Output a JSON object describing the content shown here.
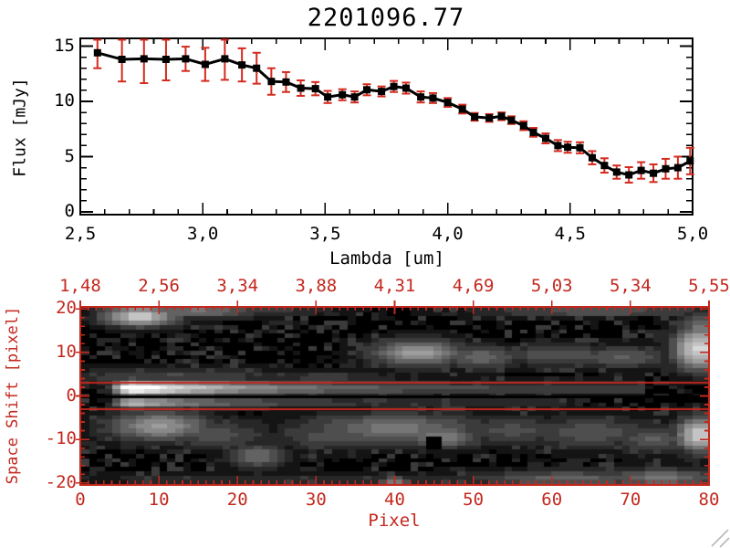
{
  "window": {
    "background": "#ffffff",
    "resize_grip_color": "#b8b8b8"
  },
  "chart_data": [
    {
      "type": "line",
      "title": "2201096.77",
      "xlabel": "Lambda [um]",
      "ylabel": "Flux [mJy]",
      "xlim": [
        2.5,
        5.0
      ],
      "ylim": [
        0,
        15.8
      ],
      "xticks": [
        2.5,
        3.0,
        3.5,
        4.0,
        4.5,
        5.0
      ],
      "xtick_labels": [
        "2,5",
        "3,0",
        "3,5",
        "4,0",
        "4,5",
        "5,0"
      ],
      "yticks": [
        0,
        5,
        10,
        15
      ],
      "ytick_labels": [
        "0",
        "5",
        "10",
        "15"
      ],
      "x_minor_step": 0.1,
      "y_minor_step": 1,
      "grid": false,
      "marker": "square",
      "line_color": "#000000",
      "marker_color": "#000000",
      "error_color": "#d42a1e",
      "x": [
        2.57,
        2.67,
        2.76,
        2.85,
        2.93,
        3.01,
        3.09,
        3.16,
        3.22,
        3.28,
        3.34,
        3.4,
        3.46,
        3.51,
        3.57,
        3.62,
        3.67,
        3.73,
        3.78,
        3.83,
        3.89,
        3.94,
        4.0,
        4.06,
        4.11,
        4.17,
        4.22,
        4.26,
        4.31,
        4.35,
        4.4,
        4.45,
        4.49,
        4.54,
        4.59,
        4.64,
        4.69,
        4.74,
        4.79,
        4.84,
        4.89,
        4.94,
        4.99
      ],
      "y": [
        14.4,
        13.8,
        13.85,
        13.8,
        13.85,
        13.35,
        13.85,
        13.3,
        13.0,
        11.8,
        11.75,
        11.2,
        11.15,
        10.4,
        10.6,
        10.4,
        11.05,
        10.9,
        11.35,
        11.2,
        10.4,
        10.3,
        9.9,
        9.3,
        8.6,
        8.5,
        8.65,
        8.3,
        7.8,
        7.2,
        6.65,
        6.0,
        5.85,
        5.8,
        4.9,
        4.2,
        3.6,
        3.35,
        3.75,
        3.5,
        3.9,
        4.0,
        4.6
      ],
      "yerr": [
        1.4,
        2.0,
        2.2,
        1.9,
        1.1,
        1.5,
        1.9,
        1.5,
        1.4,
        1.2,
        0.9,
        0.7,
        0.6,
        0.55,
        0.5,
        0.5,
        0.5,
        0.45,
        0.5,
        0.5,
        0.5,
        0.45,
        0.4,
        0.4,
        0.35,
        0.35,
        0.35,
        0.35,
        0.4,
        0.4,
        0.45,
        0.5,
        0.5,
        0.5,
        0.6,
        0.65,
        0.6,
        0.7,
        0.75,
        0.8,
        0.9,
        1.0,
        1.2
      ]
    },
    {
      "type": "heatmap",
      "xlabel": "Pixel",
      "ylabel": "Space Shift [pixel]",
      "top_axis_labels": [
        "1,48",
        "2,56",
        "3,34",
        "3,88",
        "4,31",
        "4,69",
        "5,03",
        "5,34",
        "5,55"
      ],
      "xlim": [
        0,
        80
      ],
      "ylim": [
        -20.5,
        20.5
      ],
      "xticks": [
        0,
        10,
        20,
        30,
        40,
        50,
        60,
        70,
        80
      ],
      "yticks": [
        20,
        10,
        0,
        -10,
        -20
      ],
      "ytick_labels": [
        "20",
        "10",
        "0",
        "-10",
        "-20"
      ],
      "axis_color": "#c3281e",
      "background": "#000000",
      "grid_cols": 80,
      "grid_rows": 41,
      "levels": 13,
      "overlay": {
        "red_lines_s": [
          3,
          -3
        ],
        "black_line_s": 0
      },
      "features": {
        "streaks": [
          {
            "s": 1.8,
            "sigma": 1.3,
            "x0": 3,
            "x1": 72,
            "base": 0.22,
            "amp": 0.95,
            "decay": 16
          },
          {
            "s": -1.6,
            "sigma": 1.0,
            "x0": 3,
            "x1": 62,
            "base": 0.14,
            "amp": 0.65,
            "decay": 13
          }
        ],
        "blobs": [
          [
            7.5,
            18.5,
            3.5,
            1.7,
            0.8
          ],
          [
            15,
            19.6,
            6,
            1.2,
            0.45
          ],
          [
            24,
            19.8,
            7,
            1.0,
            0.22
          ],
          [
            12,
            4.6,
            11,
            1.6,
            0.28
          ],
          [
            31,
            4.4,
            7,
            1.3,
            0.22
          ],
          [
            43,
            10,
            4.5,
            2.3,
            0.62
          ],
          [
            51,
            9,
            4,
            2.0,
            0.4
          ],
          [
            61,
            9.5,
            6,
            1.8,
            0.36
          ],
          [
            69,
            9,
            5,
            2.0,
            0.35
          ],
          [
            79,
            11,
            2.6,
            3.6,
            0.85
          ],
          [
            66,
            19.6,
            12,
            1.1,
            0.33
          ],
          [
            79,
            16,
            2.0,
            2.5,
            0.45
          ],
          [
            10,
            -7,
            5,
            2.6,
            0.58
          ],
          [
            17,
            -9,
            5,
            2.4,
            0.33
          ],
          [
            22.5,
            -14,
            3,
            2.2,
            0.42
          ],
          [
            40,
            -7.5,
            9,
            2.8,
            0.45
          ],
          [
            46,
            -9.5,
            4,
            2.0,
            0.5
          ],
          [
            33,
            -9.5,
            6,
            2.3,
            0.33
          ],
          [
            55,
            -8,
            6,
            2.5,
            0.3
          ],
          [
            65,
            -8.5,
            7,
            2.8,
            0.32
          ],
          [
            73,
            -10,
            4,
            2.5,
            0.35
          ],
          [
            79,
            -9,
            2.3,
            3.0,
            0.8
          ],
          [
            30,
            -19.5,
            25,
            1.3,
            0.2
          ],
          [
            62,
            -19.2,
            10,
            1.5,
            0.38
          ],
          [
            74,
            -19,
            6,
            1.6,
            0.45
          ],
          [
            40,
            -20,
            1.5,
            1.0,
            0.5
          ]
        ],
        "holes": [
          [
            45,
            -11
          ],
          [
            72,
            17.5
          ]
        ]
      },
      "noise": {
        "seed": 77,
        "p_black": 0.52,
        "scale": 0.5
      }
    }
  ]
}
